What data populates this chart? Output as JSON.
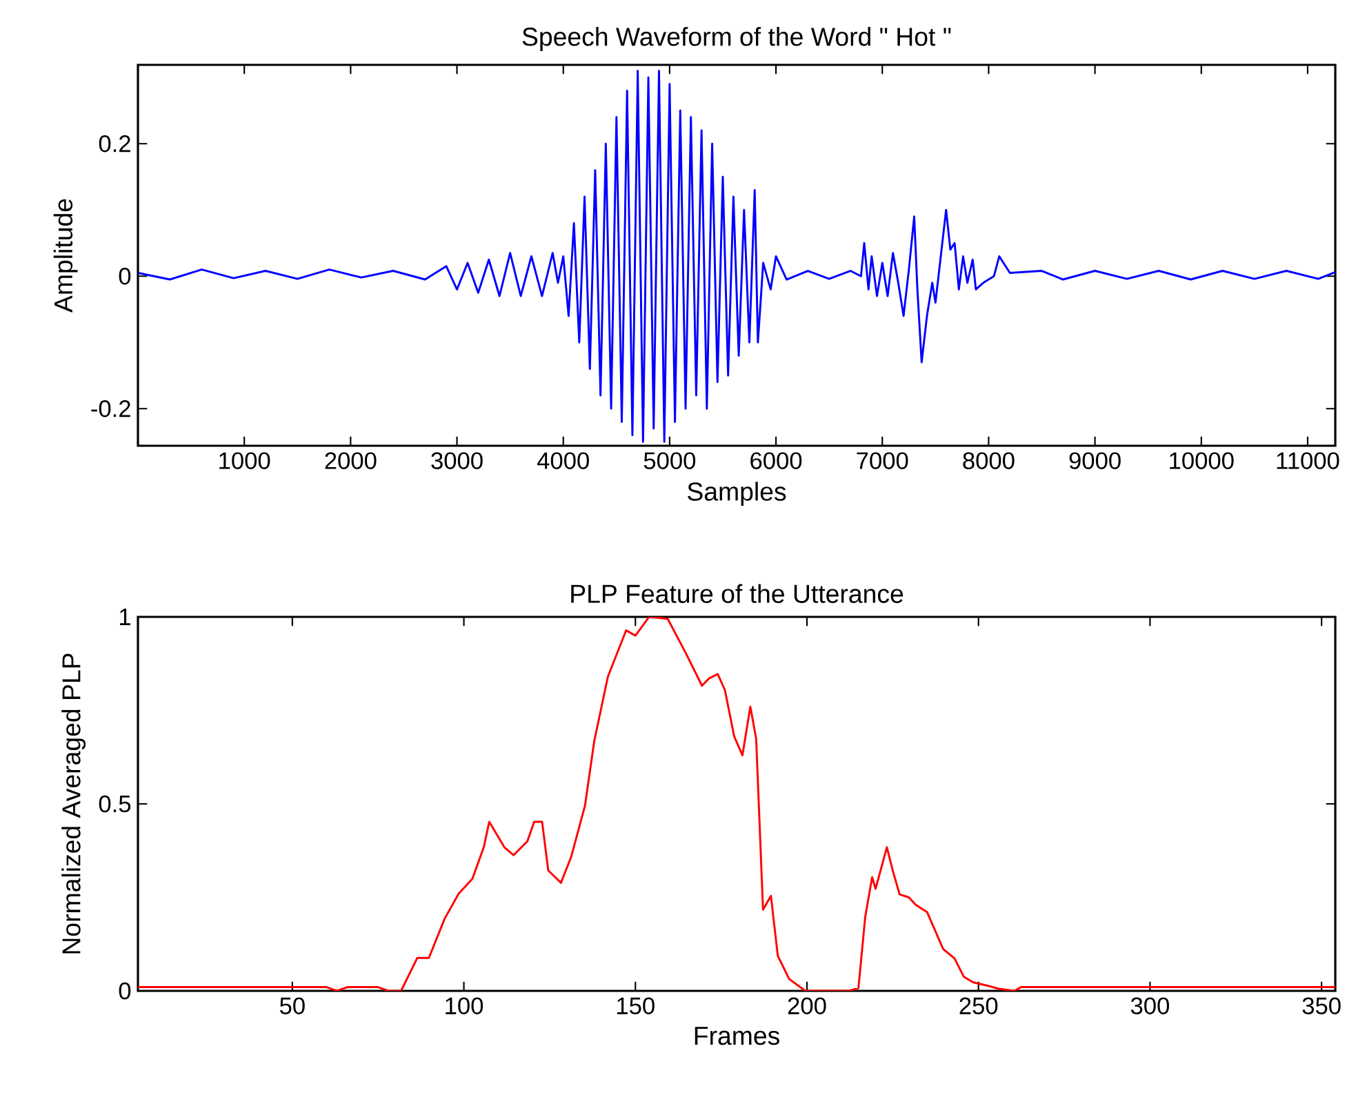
{
  "chart_data": [
    {
      "type": "line",
      "title": "Speech Waveform of the Word \" Hot \"",
      "xlabel": "Samples",
      "ylabel": "Amplitude",
      "xlim": [
        0,
        11260
      ],
      "ylim": [
        -0.256,
        0.319
      ],
      "xticks": [
        1000,
        2000,
        3000,
        4000,
        5000,
        6000,
        7000,
        8000,
        9000,
        10000,
        11000
      ],
      "yticks": [
        -0.2,
        0,
        0.2
      ],
      "grid": false,
      "marker": "none",
      "line_style": "solid",
      "series": [
        {
          "color": "#0000ff",
          "x": [
            0,
            300,
            600,
            900,
            1200,
            1500,
            1800,
            2100,
            2400,
            2700,
            2900,
            3000,
            3100,
            3200,
            3300,
            3400,
            3500,
            3600,
            3700,
            3800,
            3900,
            3950,
            4000,
            4050,
            4100,
            4150,
            4200,
            4250,
            4300,
            4350,
            4400,
            4450,
            4500,
            4550,
            4600,
            4650,
            4700,
            4750,
            4800,
            4850,
            4900,
            4950,
            5000,
            5050,
            5100,
            5150,
            5200,
            5250,
            5300,
            5350,
            5400,
            5450,
            5500,
            5550,
            5600,
            5650,
            5700,
            5750,
            5800,
            5830,
            5880,
            5950,
            6000,
            6100,
            6300,
            6500,
            6700,
            6800,
            6830,
            6870,
            6900,
            6950,
            7000,
            7050,
            7100,
            7150,
            7200,
            7250,
            7300,
            7330,
            7370,
            7420,
            7470,
            7500,
            7550,
            7600,
            7640,
            7680,
            7720,
            7760,
            7800,
            7850,
            7880,
            7950,
            8050,
            8100,
            8200,
            8500,
            8700,
            9000,
            9300,
            9600,
            9900,
            10200,
            10500,
            10800,
            11100,
            11260
          ],
          "values": [
            0.005,
            -0.005,
            0.01,
            -0.003,
            0.008,
            -0.004,
            0.01,
            -0.002,
            0.008,
            -0.005,
            0.015,
            -0.02,
            0.02,
            -0.025,
            0.025,
            -0.03,
            0.035,
            -0.03,
            0.03,
            -0.03,
            0.035,
            -0.01,
            0.03,
            -0.06,
            0.08,
            -0.1,
            0.12,
            -0.14,
            0.16,
            -0.18,
            0.2,
            -0.2,
            0.24,
            -0.22,
            0.28,
            -0.24,
            0.31,
            -0.25,
            0.3,
            -0.23,
            0.31,
            -0.25,
            0.29,
            -0.22,
            0.25,
            -0.2,
            0.24,
            -0.18,
            0.22,
            -0.2,
            0.2,
            -0.16,
            0.15,
            -0.15,
            0.12,
            -0.12,
            0.1,
            -0.1,
            0.13,
            -0.1,
            0.02,
            -0.02,
            0.03,
            -0.005,
            0.008,
            -0.004,
            0.008,
            0.0,
            0.05,
            -0.02,
            0.03,
            -0.03,
            0.02,
            -0.03,
            0.035,
            -0.01,
            -0.06,
            0.01,
            0.09,
            -0.02,
            -0.13,
            -0.06,
            -0.01,
            -0.04,
            0.03,
            0.1,
            0.04,
            0.05,
            -0.02,
            0.03,
            -0.01,
            0.025,
            -0.02,
            -0.01,
            0.0,
            0.03,
            0.005,
            0.008,
            -0.005,
            0.008,
            -0.004,
            0.008,
            -0.005,
            0.008,
            -0.004,
            0.008,
            -0.004,
            0.006
          ]
        }
      ]
    },
    {
      "type": "line",
      "title": "PLP Feature of the Utterance",
      "xlabel": "Frames",
      "ylabel": "Normalized Averaged PLP",
      "xlim": [
        5,
        354
      ],
      "ylim": [
        0,
        1
      ],
      "xticks": [
        50,
        100,
        150,
        200,
        250,
        300,
        350
      ],
      "yticks": [
        0,
        0.5,
        1
      ],
      "grid": false,
      "marker": "none",
      "line_style": "solid",
      "series": [
        {
          "color": "#ff0000",
          "x": [
            5,
            60,
            63,
            66,
            75,
            78,
            81.7,
            86.4,
            89.8,
            94.4,
            98.5,
            102.5,
            105.8,
            107.4,
            111.8,
            114.5,
            118.5,
            120.5,
            122.8,
            124.6,
            128.3,
            131.3,
            135.3,
            138,
            142,
            147.3,
            150,
            154,
            159.4,
            164.7,
            169.4,
            171.4,
            174,
            176.1,
            178.8,
            181.2,
            183.5,
            185.2,
            187.2,
            189.5,
            191.5,
            194.8,
            199.5,
            212.2,
            215,
            217,
            219,
            220,
            223.3,
            225,
            227,
            229.7,
            231.7,
            235,
            239.7,
            243,
            245.7,
            248.4,
            253,
            255.7,
            260.4,
            262.4,
            354
          ],
          "values": [
            0.01,
            0.01,
            0,
            0.01,
            0.01,
            0,
            0,
            0.088,
            0.088,
            0.193,
            0.26,
            0.3,
            0.384,
            0.452,
            0.384,
            0.363,
            0.4,
            0.452,
            0.452,
            0.322,
            0.289,
            0.359,
            0.495,
            0.668,
            0.841,
            0.964,
            0.95,
            1.0,
            0.995,
            0.903,
            0.816,
            0.835,
            0.847,
            0.804,
            0.68,
            0.63,
            0.76,
            0.674,
            0.217,
            0.254,
            0.094,
            0.032,
            0,
            0,
            0.007,
            0.199,
            0.304,
            0.273,
            0.384,
            0.322,
            0.258,
            0.25,
            0.23,
            0.211,
            0.112,
            0.087,
            0.038,
            0.023,
            0.013,
            0.006,
            0,
            0.01,
            0.01
          ]
        }
      ]
    }
  ]
}
